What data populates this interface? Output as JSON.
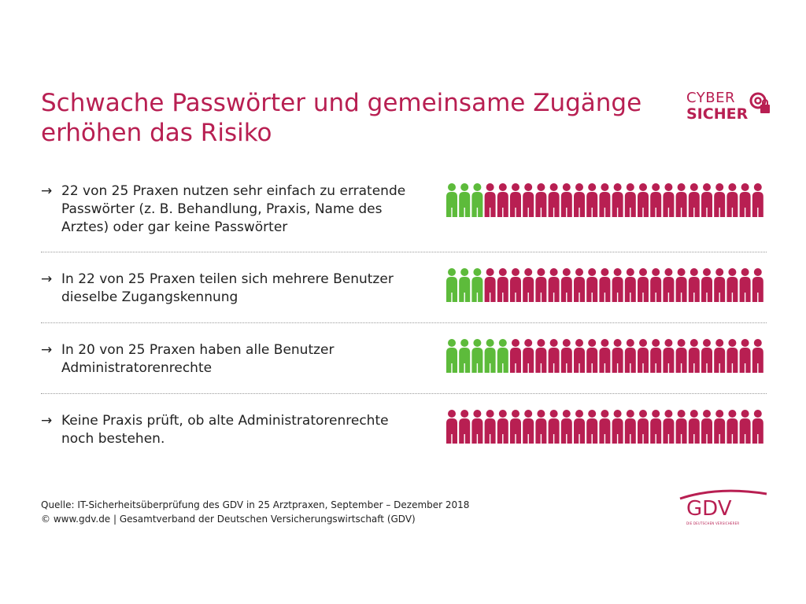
{
  "title": {
    "line1": "Schwache Passwörter und gemeinsame Zugänge",
    "line2": "erhöhen das Risiko"
  },
  "logo": {
    "cyber": "CYBER",
    "sicher": "SICHER"
  },
  "colors": {
    "accent": "#b81f52",
    "positive": "#5dbb3b",
    "negative": "#b81f52"
  },
  "arrow": "→",
  "rows": [
    {
      "text": "22 von 25 Praxen nutzen sehr einfach zu erratende Passwörter (z. B. Behandlung, Praxis, Name des Arztes) oder gar keine Passwörter"
    },
    {
      "text": "In 22 von 25 Praxen teilen sich mehrere Benutzer dieselbe Zugangskennung"
    },
    {
      "text": "In 20 von 25 Praxen haben alle Benutzer Administratorenrechte"
    },
    {
      "text": "Keine Praxis prüft, ob alte Administratorenrechte noch bestehen."
    }
  ],
  "chart_data": {
    "type": "bar",
    "total": 25,
    "categories": [
      "22 von 25 Praxen nutzen sehr einfach zu erratende Passwörter (z. B. Behandlung, Praxis, Name des Arztes) oder gar keine Passwörter",
      "In 22 von 25 Praxen teilen sich mehrere Benutzer dieselbe Zugangskennung",
      "In 20 von 25 Praxen haben alle Benutzer Administratorenrechte",
      "Keine Praxis prüft, ob alte Administratorenrechte noch bestehen."
    ],
    "series": [
      {
        "values": [
          3,
          3,
          5,
          0
        ],
        "color": "#5dbb3b"
      },
      {
        "values": [
          22,
          22,
          20,
          25
        ],
        "color": "#b81f52"
      }
    ]
  },
  "footer": {
    "source": "Quelle: IT-Sicherheitsüberprüfung des GDV in 25 Arztpraxen, September – Dezember 2018",
    "copyright": "© www.gdv.de | Gesamtverband der Deutschen Versicherungswirtschaft (GDV)"
  },
  "gdv_logo": {
    "name": "GDV",
    "sub": "DIE DEUTSCHEN VERSICHERER"
  }
}
